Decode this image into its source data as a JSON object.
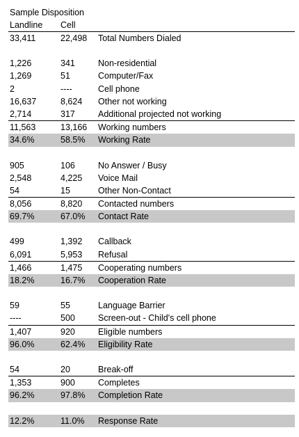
{
  "title": "Sample Disposition",
  "headers": {
    "landline": "Landline",
    "cell": "Cell"
  },
  "rows": [
    {
      "landline": "33,411",
      "cell": "22,498",
      "label": "Total Numbers Dialed"
    },
    {
      "landline": "",
      "cell": "",
      "label": ""
    },
    {
      "landline": "1,226",
      "cell": "341",
      "label": "Non-residential"
    },
    {
      "landline": "1,269",
      "cell": "51",
      "label": "Computer/Fax"
    },
    {
      "landline": "2",
      "cell": "----",
      "label": "Cell phone"
    },
    {
      "landline": "16,637",
      "cell": "8,624",
      "label": "Other not working"
    },
    {
      "landline": "2,714",
      "cell": "317",
      "label": "Additional projected not working"
    },
    {
      "landline": "11,563",
      "cell": "13,166",
      "label": "Working numbers"
    },
    {
      "landline": "34.6%",
      "cell": "58.5%",
      "label": "Working Rate"
    },
    {
      "landline": "",
      "cell": "",
      "label": ""
    },
    {
      "landline": "905",
      "cell": "106",
      "label": "No Answer / Busy"
    },
    {
      "landline": "2,548",
      "cell": "4,225",
      "label": "Voice Mail"
    },
    {
      "landline": "54",
      "cell": "15",
      "label": "Other Non-Contact"
    },
    {
      "landline": "8,056",
      "cell": "8,820",
      "label": "Contacted numbers"
    },
    {
      "landline": "69.7%",
      "cell": "67.0%",
      "label": "Contact Rate"
    },
    {
      "landline": "",
      "cell": "",
      "label": ""
    },
    {
      "landline": "499",
      "cell": "1,392",
      "label": "Callback"
    },
    {
      "landline": "6,091",
      "cell": "5,953",
      "label": "Refusal"
    },
    {
      "landline": "1,466",
      "cell": "1,475",
      "label": "Cooperating numbers"
    },
    {
      "landline": "18.2%",
      "cell": "16.7%",
      "label": "Cooperation Rate"
    },
    {
      "landline": "",
      "cell": "",
      "label": ""
    },
    {
      "landline": "59",
      "cell": "55",
      "label": "Language Barrier"
    },
    {
      "landline": "----",
      "cell": "500",
      "label": "Screen-out - Child's cell phone"
    },
    {
      "landline": "1,407",
      "cell": "920",
      "label": "Eligible numbers"
    },
    {
      "landline": "96.0%",
      "cell": "62.4%",
      "label": "Eligibility Rate"
    },
    {
      "landline": "",
      "cell": "",
      "label": ""
    },
    {
      "landline": "54",
      "cell": "20",
      "label": "Break-off"
    },
    {
      "landline": "1,353",
      "cell": "900",
      "label": "Completes"
    },
    {
      "landline": "96.2%",
      "cell": "97.8%",
      "label": "Completion Rate"
    },
    {
      "landline": "",
      "cell": "",
      "label": ""
    },
    {
      "landline": "12.2%",
      "cell": "11.0%",
      "label": "Response Rate"
    }
  ]
}
